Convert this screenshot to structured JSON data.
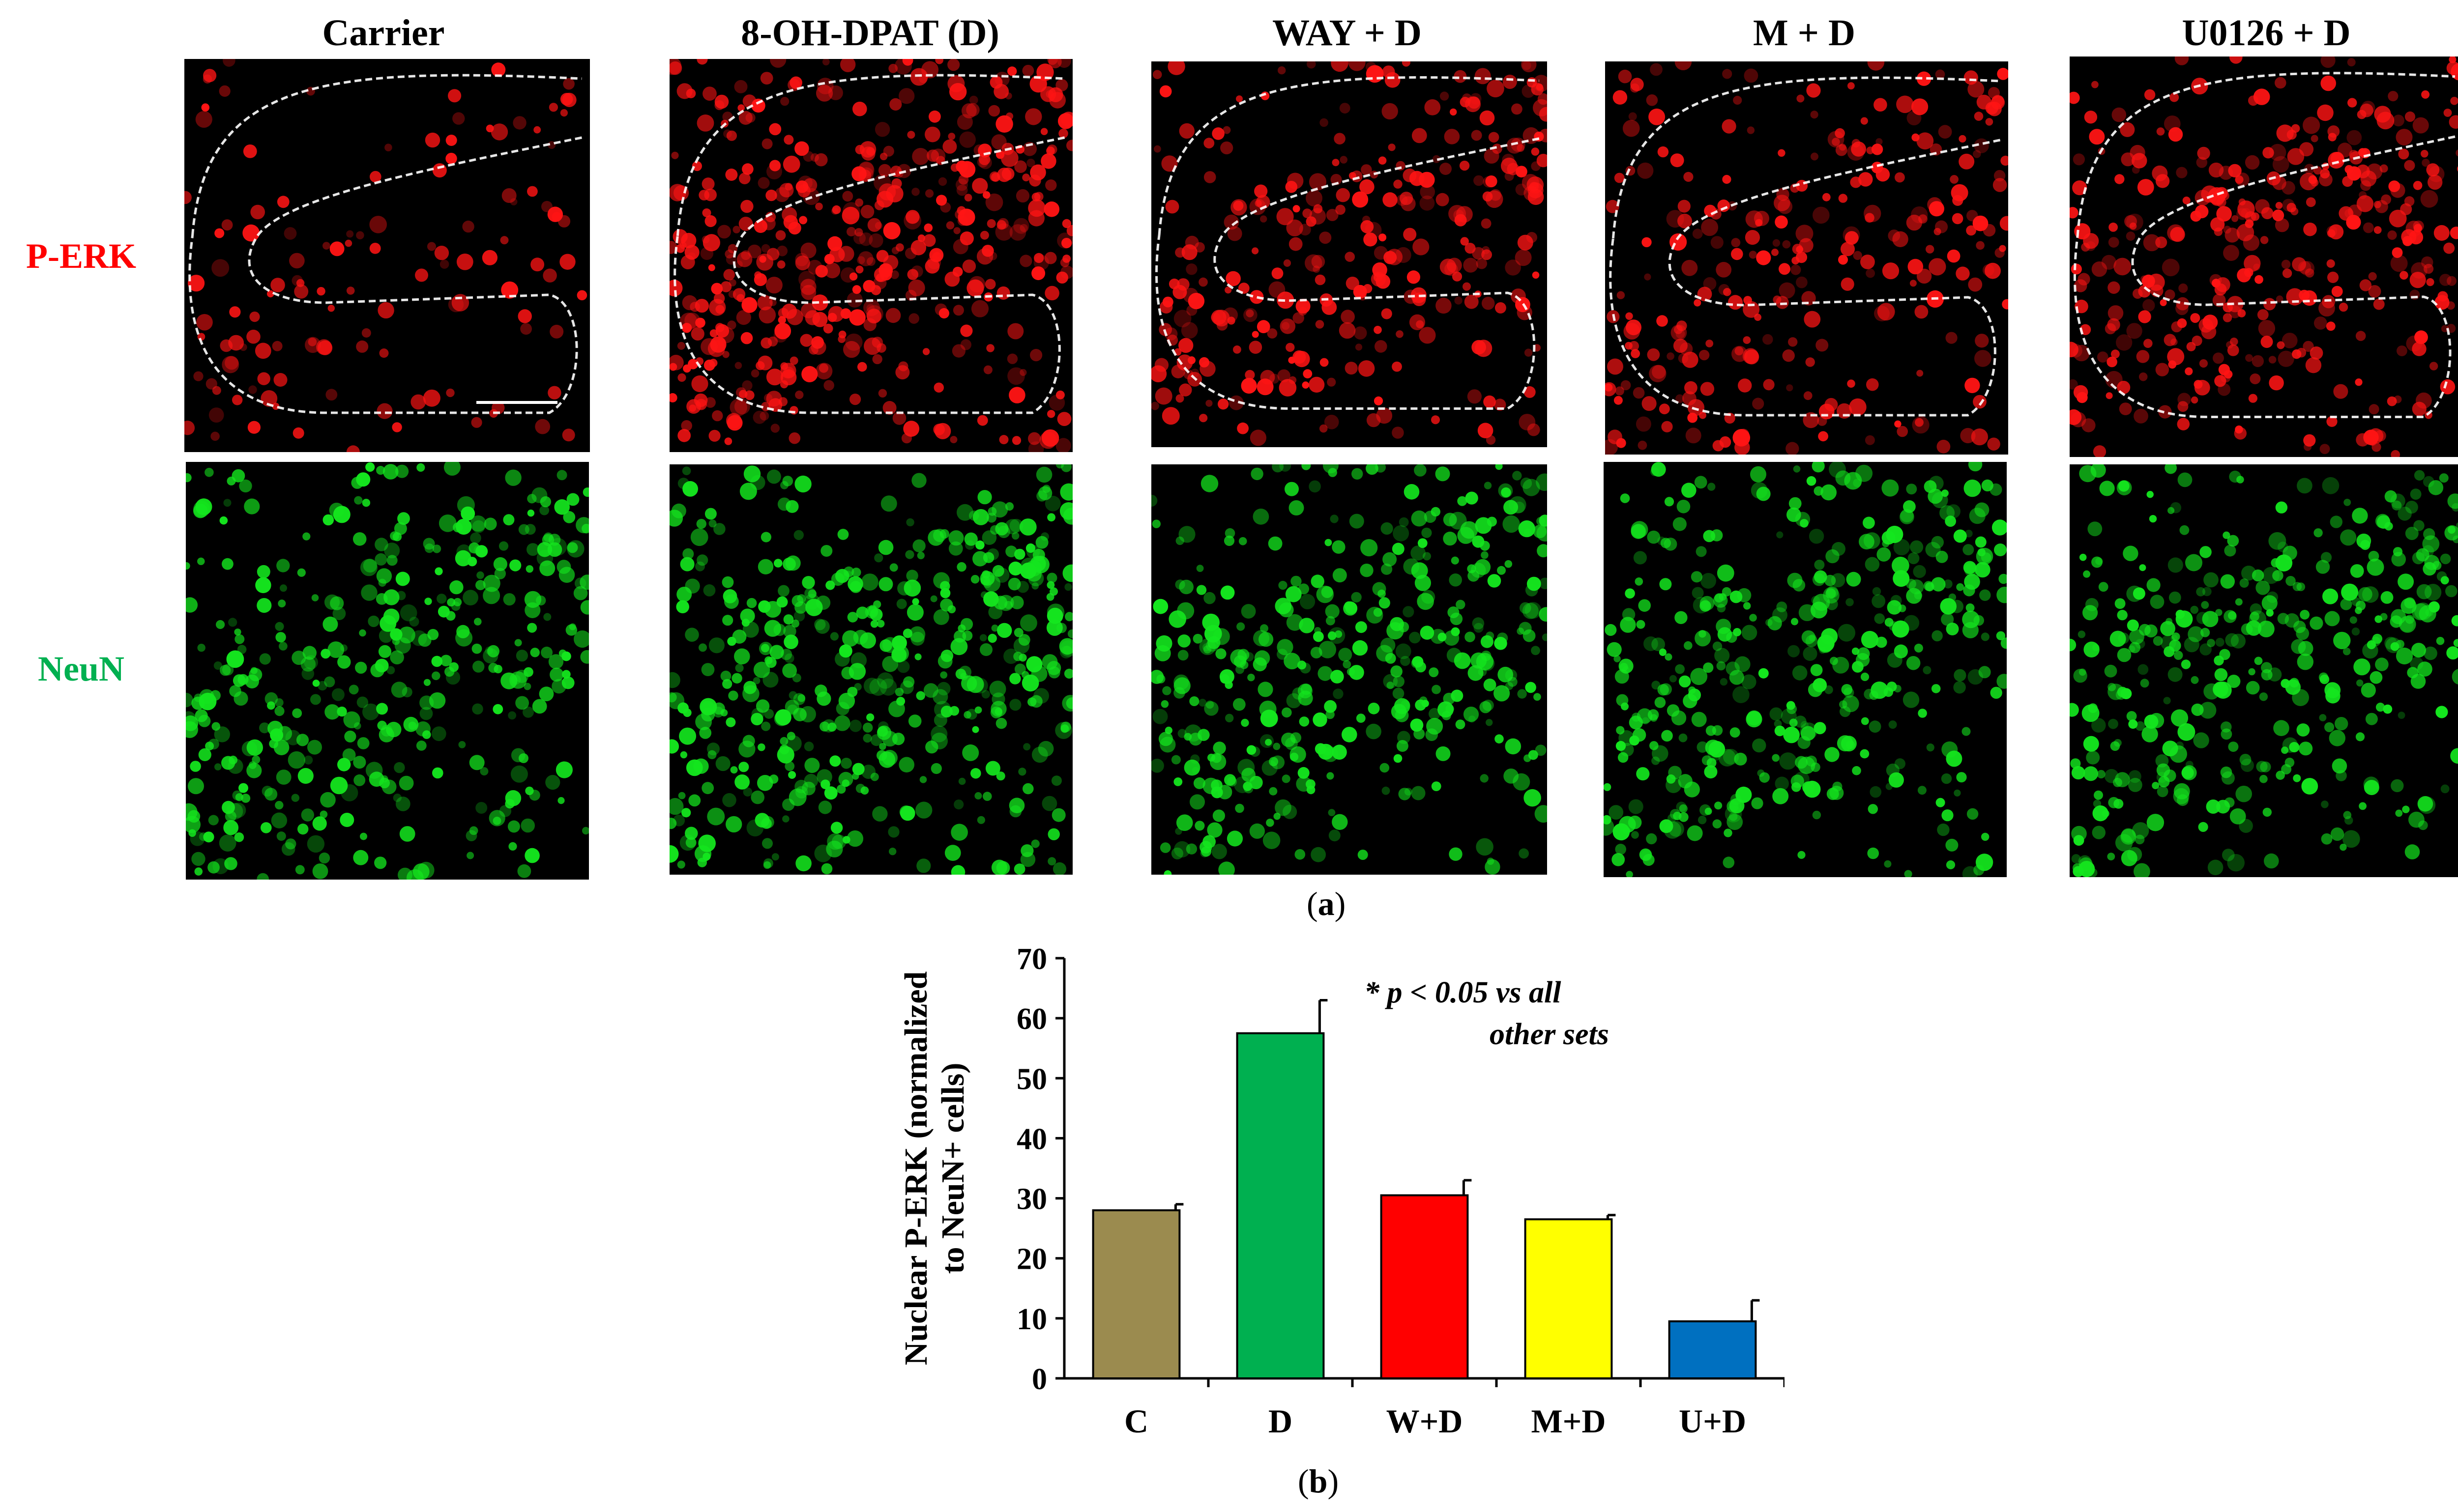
{
  "figure": {
    "columns": [
      "Carrier",
      "8-OH-DPAT (D)",
      "WAY + D",
      "M + D",
      "U0126 + D"
    ],
    "rows": [
      {
        "label": "P-ERK",
        "color": "#ff0000"
      },
      {
        "label": "NeuN",
        "color": "#00b050"
      }
    ],
    "scale_bar_label": "",
    "panel_a": "(a)",
    "panel_b": "(b)",
    "panel_a_parts": [
      "(",
      "a",
      ")"
    ],
    "panel_b_parts": [
      "(",
      "b",
      ")"
    ]
  },
  "chart_data": {
    "type": "bar",
    "categories": [
      "C",
      "D",
      "W+D",
      "M+D",
      "U+D"
    ],
    "values": [
      28,
      57.5,
      30.5,
      26.5,
      9.5
    ],
    "errors": [
      1,
      5.5,
      2.5,
      0.7,
      3.5
    ],
    "colors": [
      "#9b8b4f",
      "#00b050",
      "#ff0000",
      "#ffff00",
      "#0070c0"
    ],
    "ylabel_line1": "Nuclear P-ERK (normalized",
    "ylabel_line2": "to  NeuN+ cells)",
    "ylim": [
      0,
      70
    ],
    "yticks": [
      0,
      10,
      20,
      30,
      40,
      50,
      60,
      70
    ],
    "annotation_line1": "* p < 0.05 vs all",
    "annotation_line2": "other sets",
    "significance": "*"
  }
}
